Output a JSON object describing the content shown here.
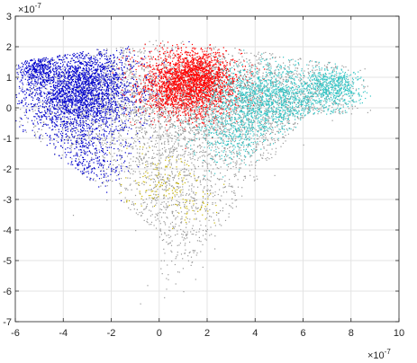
{
  "chart_data": {
    "type": "scatter",
    "title": "",
    "xlabel": "",
    "ylabel": "",
    "xlim": [
      -6e-07,
      1e-06
    ],
    "ylim": [
      -7e-07,
      3e-07
    ],
    "x_ticks": [
      -6e-07,
      -4e-07,
      -2e-07,
      0,
      2e-07,
      4e-07,
      6e-07,
      8e-07,
      1e-06
    ],
    "y_ticks": [
      -7e-07,
      -6e-07,
      -5e-07,
      -4e-07,
      -3e-07,
      -2e-07,
      -1e-07,
      0,
      1e-07,
      2e-07,
      3e-07
    ],
    "x_tick_labels": [
      "-6",
      "-4",
      "-2",
      "0",
      "2",
      "4",
      "6",
      "8",
      "10"
    ],
    "y_tick_labels": [
      "-7",
      "-6",
      "-5",
      "-4",
      "-3",
      "-2",
      "-1",
      "0",
      "1",
      "2",
      "3"
    ],
    "x_exponent": {
      "base": "×10",
      "power": "-7"
    },
    "y_exponent": {
      "base": "×10",
      "power": "-7"
    },
    "grid": true,
    "legend": "none",
    "series": [
      {
        "color": "#9a9a9a",
        "clusters": [
          {
            "center": [
              5e-08,
              3e-08
            ],
            "spread": [
              3.4e-07,
              1e-07
            ],
            "count": 2600
          },
          {
            "center": [
              1e-07,
              -1.6e-07
            ],
            "spread": [
              2.4e-07,
              1e-07
            ],
            "count": 900
          },
          {
            "center": [
              8e-08,
              -3.8e-07
            ],
            "spread": [
              1.4e-07,
              1e-07
            ],
            "count": 350
          },
          {
            "center": [
              5.5e-07,
              2e-08
            ],
            "spread": [
              1.6e-07,
              1e-07
            ],
            "count": 500
          }
        ],
        "points": [
          [
            -3.6e-07,
            -3.5e-07
          ],
          [
            -2.2e-07,
            -3e-07
          ],
          [
            -1e-07,
            -4e-07
          ],
          [
            -5e-08,
            -5.8e-07
          ],
          [
            2e-08,
            -6.2e-07
          ],
          [
            1e-07,
            -6e-07
          ],
          [
            1.5e-07,
            -5.6e-07
          ],
          [
            5e-08,
            -5e-07
          ],
          [
            3.2e-07,
            -3e-07
          ],
          [
            1.8e-07,
            -5.2e-07
          ],
          [
            -8e-08,
            -6.4e-07
          ],
          [
            2.3e-07,
            -4.6e-07
          ],
          [
            6e-07,
            -1.2e-07
          ],
          [
            7.2e-07,
            -4e-08
          ],
          [
            4.8e-07,
            -2.2e-07
          ],
          [
            8.5e-07,
            9e-08
          ]
        ]
      },
      {
        "color": "#0000cc",
        "clusters": [
          {
            "center": [
              -3.4e-07,
              6e-08
            ],
            "spread": [
              1.2e-07,
              7.5e-08
            ],
            "count": 2600
          },
          {
            "center": [
              -5.2e-07,
              1.3e-07
            ],
            "spread": [
              3.5e-08,
              2.5e-08
            ],
            "count": 250
          },
          {
            "center": [
              -3e-07,
              -1.6e-07
            ],
            "spread": [
              8e-08,
              5.5e-08
            ],
            "count": 300
          }
        ],
        "points": []
      },
      {
        "color": "#ff0000",
        "clusters": [
          {
            "center": [
              1.2e-07,
              8e-08
            ],
            "spread": [
              1e-07,
              5.5e-08
            ],
            "count": 2300
          },
          {
            "center": [
              1.8e-07,
              1.2e-07
            ],
            "spread": [
              5e-08,
              3e-08
            ],
            "count": 300
          }
        ],
        "points": []
      },
      {
        "color": "#33c4c4",
        "clusters": [
          {
            "center": [
              4.6e-07,
              3.5e-08
            ],
            "spread": [
              1.4e-07,
              5.5e-08
            ],
            "count": 1500
          },
          {
            "center": [
              7.2e-07,
              7e-08
            ],
            "spread": [
              6e-08,
              3e-08
            ],
            "count": 500
          },
          {
            "center": [
              3e-07,
              -8e-08
            ],
            "spread": [
              8e-08,
              5e-08
            ],
            "count": 350
          }
        ],
        "points": []
      },
      {
        "color": "#c8b400",
        "clusters": [
          {
            "center": [
              3e-08,
              -2.4e-07
            ],
            "spread": [
              8e-08,
              5e-08
            ],
            "count": 120
          },
          {
            "center": [
              1.6e-07,
              -3.2e-07
            ],
            "spread": [
              5e-08,
              3e-08
            ],
            "count": 40
          }
        ],
        "points": []
      }
    ]
  }
}
